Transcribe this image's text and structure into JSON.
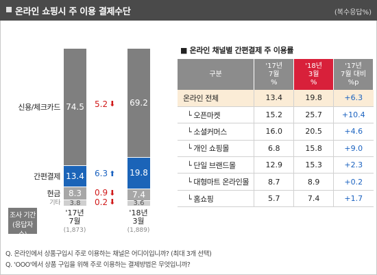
{
  "header": {
    "title": "온라인 쇼핑시 주 이용 결제수단",
    "note": "(복수응답%)"
  },
  "chart_data": [
    {
      "type": "bar",
      "stacked": true,
      "categories": [
        "'17년 7월",
        "'18년 3월"
      ],
      "category_n": [
        "(1,873)",
        "(1,889)"
      ],
      "series": [
        {
          "name": "신용/체크카드",
          "values": [
            74.5,
            69.2
          ],
          "color": "#7f7f7f",
          "change": "5.2",
          "change_dir": "down"
        },
        {
          "name": "간편결제",
          "values": [
            13.4,
            19.8
          ],
          "color": "#1b64b8",
          "change": "6.3",
          "change_dir": "up"
        },
        {
          "name": "현금",
          "values": [
            8.3,
            7.4
          ],
          "color": "#a7a7a7",
          "change": "0.9",
          "change_dir": "down"
        },
        {
          "name": "기타",
          "values": [
            3.8,
            3.6
          ],
          "color": "#cfcfcf",
          "change": "0.2",
          "change_dir": "down"
        }
      ],
      "axis_box_label": [
        "조사 기간",
        "(응답자수)"
      ]
    },
    {
      "type": "table",
      "title": "온라인 채널별 간편결제 주 이용률",
      "columns": [
        "구분",
        "'17년 7월 %",
        "'18년 3월 %",
        "'17년 7월 대비 %p"
      ],
      "rows": [
        {
          "label": "온라인 전체",
          "v17": "13.4",
          "v18": "19.8",
          "diff": "+6.3"
        },
        {
          "label": "오픈마켓",
          "v17": "15.2",
          "v18": "25.7",
          "diff": "+10.4"
        },
        {
          "label": "소셜커머스",
          "v17": "16.0",
          "v18": "20.5",
          "diff": "+4.6"
        },
        {
          "label": "개인 쇼핑몰",
          "v17": "6.8",
          "v18": "15.8",
          "diff": "+9.0"
        },
        {
          "label": "단일 브랜드몰",
          "v17": "12.9",
          "v18": "15.3",
          "diff": "+2.3"
        },
        {
          "label": "대형마트 온라인몰",
          "v17": "8.7",
          "v18": "8.9",
          "diff": "+0.2"
        },
        {
          "label": "홈쇼핑",
          "v17": "5.7",
          "v18": "7.4",
          "diff": "+1.7"
        }
      ]
    }
  ],
  "table_head": {
    "c0": "구분",
    "c1": [
      "'17년",
      "7월",
      "%"
    ],
    "c2": [
      "'18년",
      "3월",
      "%"
    ],
    "c3": [
      "'17년",
      "7월 대비",
      "%p"
    ]
  },
  "labels": {
    "sub_marker": "└",
    "x1": [
      "'17년",
      "7월"
    ],
    "x2": [
      "'18년",
      "3월"
    ]
  },
  "questions": [
    "Q. 온라인에서 상품구입시 주로 이용하는 채널은 어디이입니까? (최대 3개 선택)",
    "Q. 'OOO'에서 상품 구입을 위해 주로 이용하는 결제방법은 무엇입니까?"
  ],
  "colors": {
    "card": "#7f7f7f",
    "easypay": "#1b64b8",
    "cash": "#a7a7a7",
    "other": "#cfcfcf",
    "accent_red": "#d01818",
    "accent_blue": "#1a62c0",
    "highlight_col": "#d8203a",
    "total_row_bg": "#fbecd6"
  }
}
